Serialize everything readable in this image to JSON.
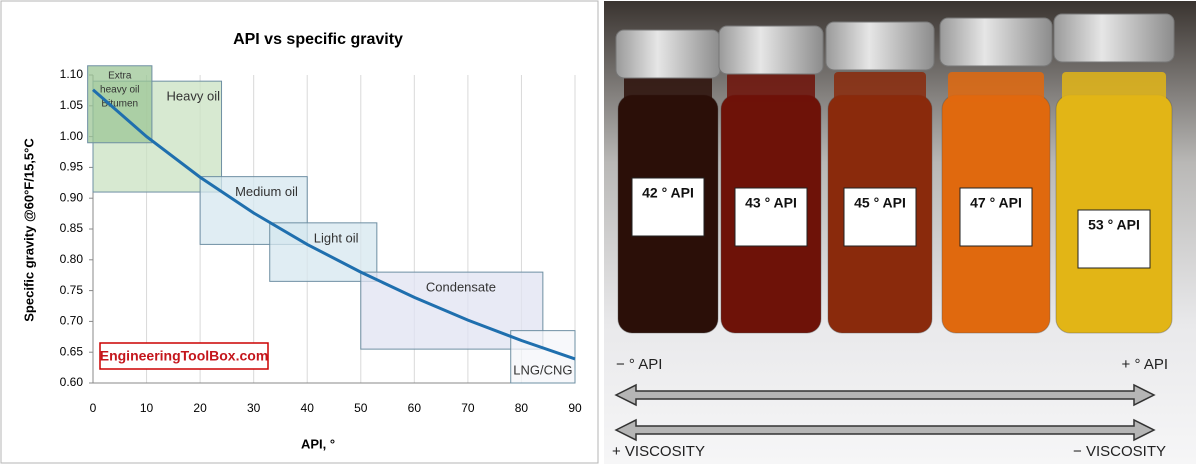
{
  "chart_data": {
    "type": "line",
    "title": "API vs specific gravity",
    "xlabel": "API, °",
    "ylabel": "Specific gravity @60°F/15,5°C",
    "x": [
      0,
      10,
      20,
      30,
      40,
      50,
      60,
      70,
      80,
      90
    ],
    "series": [
      {
        "name": "Specific gravity",
        "color": "#1f6fae",
        "values": [
          1.076,
          1.0,
          0.934,
          0.876,
          0.825,
          0.78,
          0.739,
          0.702,
          0.669,
          0.639
        ]
      }
    ],
    "xlim": [
      0,
      90
    ],
    "xticks": [
      0,
      10,
      20,
      30,
      40,
      50,
      60,
      70,
      80,
      90
    ],
    "ylim": [
      0.6,
      1.1
    ],
    "yticks": [
      {
        "value": 0.6,
        "label": "0.60"
      },
      {
        "value": 0.65,
        "label": "0.65"
      },
      {
        "value": 0.7,
        "label": "0.70"
      },
      {
        "value": 0.75,
        "label": "0.75"
      },
      {
        "value": 0.8,
        "label": "0.80"
      },
      {
        "value": 0.85,
        "label": "0.85"
      },
      {
        "value": 0.9,
        "label": "0.90"
      },
      {
        "value": 0.95,
        "label": "0.95"
      },
      {
        "value": 1.0,
        "label": "1.00"
      },
      {
        "value": 1.05,
        "label": "1.05"
      },
      {
        "value": 1.1,
        "label": "1.10"
      }
    ],
    "grid": "x",
    "regions": [
      {
        "label": [
          "Heavy oil"
        ],
        "xlim": [
          0,
          24
        ],
        "ylim": [
          0.91,
          1.09
        ],
        "color": "#c9e2c2"
      },
      {
        "label": [
          "Extra",
          "heavy oil",
          "Bitumen"
        ],
        "xlim": [
          -1,
          11
        ],
        "ylim": [
          0.99,
          1.115
        ],
        "color": "#9cc596"
      },
      {
        "label": [
          "Medium oil"
        ],
        "xlim": [
          20,
          40
        ],
        "ylim": [
          0.825,
          0.935
        ],
        "color": "#d6e7ef"
      },
      {
        "label": [
          "Light oil"
        ],
        "xlim": [
          33,
          53
        ],
        "ylim": [
          0.765,
          0.86
        ],
        "color": "#d6e7ef"
      },
      {
        "label": [
          "Condensate"
        ],
        "xlim": [
          50,
          84
        ],
        "ylim": [
          0.655,
          0.78
        ],
        "color": "#e0e3f1"
      },
      {
        "label": [
          "LNG/CNG"
        ],
        "xlim": [
          78,
          90
        ],
        "ylim": [
          0.6,
          0.685
        ],
        "color": "#f4f6f9"
      }
    ],
    "watermark": "EngineeringToolBox.com"
  },
  "photo": {
    "vials": [
      {
        "label": "42 ° API",
        "color": "#2b0f08"
      },
      {
        "label": "43 ° API",
        "color": "#6e1208"
      },
      {
        "label": "45 ° API",
        "color": "#8a2a0c"
      },
      {
        "label": "47 ° API",
        "color": "#e0690e"
      },
      {
        "label": "53 ° API",
        "color": "#e2b516"
      }
    ],
    "less_api": "− ° API",
    "more_api": "+ ° API",
    "more_viscosity": "+ VISCOSITY",
    "less_viscosity": "− VISCOSITY"
  }
}
